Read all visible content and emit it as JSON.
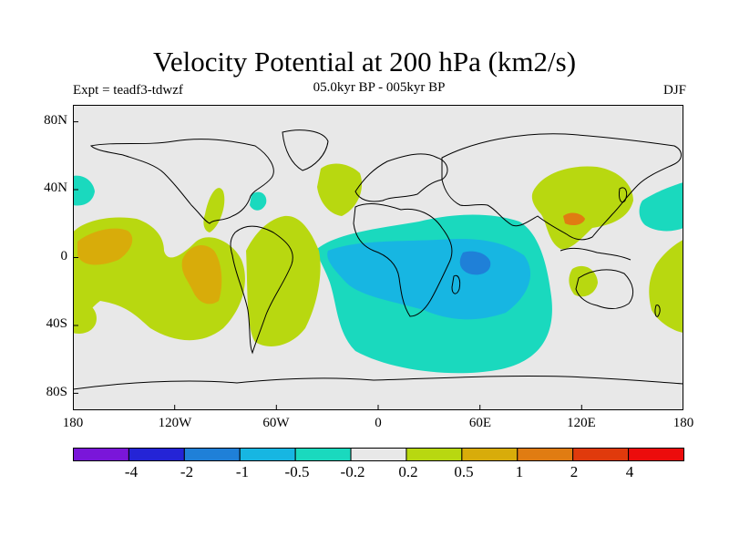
{
  "title": "Velocity Potential at 200 hPa (km2/s)",
  "subtitle": "05.0kyr BP - 005kyr BP",
  "experiment": "Expt = teadf3-tdwzf",
  "season": "DJF",
  "lat_labels": [
    "80N",
    "40N",
    "0",
    "40S",
    "80S"
  ],
  "lon_labels": [
    "180",
    "120W",
    "60W",
    "0",
    "60E",
    "120E",
    "180"
  ],
  "colorbar": {
    "colors": [
      "#7a16d9",
      "#2424d6",
      "#1f80d8",
      "#17b6e2",
      "#1ad9be",
      "#e8e8e8",
      "#b8d810",
      "#d8ac0a",
      "#e07c12",
      "#e03a0c",
      "#ec0c0c"
    ],
    "labels": [
      "-4",
      "-2",
      "-1",
      "-0.5",
      "-0.2",
      "0.2",
      "0.5",
      "1",
      "2",
      "4"
    ]
  },
  "chart_data": {
    "type": "contour-map",
    "title": "Velocity Potential at 200 hPa (km2/s)",
    "subtitle": "05.0kyr BP - 005kyr BP",
    "projection": "cylindrical equidistant",
    "xlim": [
      -180,
      180
    ],
    "ylim": [
      -90,
      90
    ],
    "contour_levels": [
      -4,
      -2,
      -1,
      -0.5,
      -0.2,
      0.2,
      0.5,
      1,
      2,
      4
    ],
    "regions": [
      {
        "name": "Indian Ocean / southern Africa negative",
        "class": "-0.5 to -0.2",
        "lon": [
          -20,
          110
        ],
        "lat": [
          -70,
          20
        ]
      },
      {
        "name": "Indian Ocean core",
        "class": "-1 to -0.5",
        "lon": [
          -10,
          85
        ],
        "lat": [
          -40,
          15
        ]
      },
      {
        "name": "Indian Ocean minimum",
        "class": "-2 to -1",
        "lon": [
          52,
          68
        ],
        "lat": [
          -10,
          0
        ]
      },
      {
        "name": "Central Pacific positive",
        "class": "0.2 to 0.5",
        "lon": [
          -180,
          -100
        ],
        "lat": [
          -50,
          25
        ]
      },
      {
        "name": "Central Pacific max",
        "class": "0.5 to 1",
        "lon": [
          -175,
          -150
        ],
        "lat": [
          -5,
          20
        ]
      },
      {
        "name": "East Pacific max",
        "class": "0.5 to 1",
        "lon": [
          -118,
          -100
        ],
        "lat": [
          -30,
          5
        ]
      },
      {
        "name": "South America / Atlantic positive",
        "class": "0.2 to 0.5",
        "lon": [
          -80,
          -40
        ],
        "lat": [
          -50,
          25
        ]
      },
      {
        "name": "North Atlantic positive",
        "class": "0.2 to 0.5",
        "lon": [
          -35,
          -10
        ],
        "lat": [
          20,
          50
        ]
      },
      {
        "name": "East Asia positive",
        "class": "0.2 to 0.5",
        "lon": [
          95,
          145
        ],
        "lat": [
          15,
          50
        ]
      },
      {
        "name": "East China max",
        "class": "1 to 2",
        "lon": [
          115,
          130
        ],
        "lat": [
          22,
          28
        ]
      },
      {
        "name": "West Pacific negative",
        "class": "-0.5 to -0.2",
        "lon": [
          155,
          180
        ],
        "lat": [
          15,
          40
        ]
      },
      {
        "name": "Australia positive",
        "class": "0.2 to 0.5",
        "lon": [
          115,
          130
        ],
        "lat": [
          -30,
          -15
        ]
      }
    ]
  }
}
